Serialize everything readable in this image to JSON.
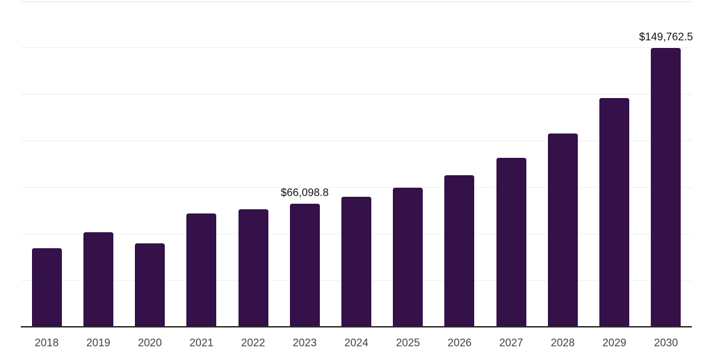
{
  "chart_data": {
    "type": "bar",
    "title": "",
    "xlabel": "",
    "ylabel": "",
    "categories": [
      "2018",
      "2019",
      "2020",
      "2021",
      "2022",
      "2023",
      "2024",
      "2025",
      "2026",
      "2027",
      "2028",
      "2029",
      "2030"
    ],
    "values": [
      42400,
      50900,
      44900,
      61000,
      63200,
      66098.8,
      69900,
      74800,
      81500,
      90900,
      104000,
      123000,
      149762.5
    ],
    "value_labels": [
      "",
      "",
      "",
      "",
      "",
      "$66,098.8",
      "",
      "",
      "",
      "",
      "",
      "",
      "$149,762.5"
    ],
    "ylim": [
      0,
      175000
    ],
    "gridline_values": [
      25000,
      50000,
      75000,
      100000,
      125000,
      150000,
      175000
    ],
    "grid": "on",
    "legend": "none",
    "colors": {
      "bar": "#341148",
      "axis_line": "#2b2b2b",
      "gridline": "#f0f0f0",
      "top_gridline": "#e7e7e7",
      "tick_label": "#3f3f3f",
      "data_label": "#111111",
      "background": "#ffffff"
    }
  }
}
